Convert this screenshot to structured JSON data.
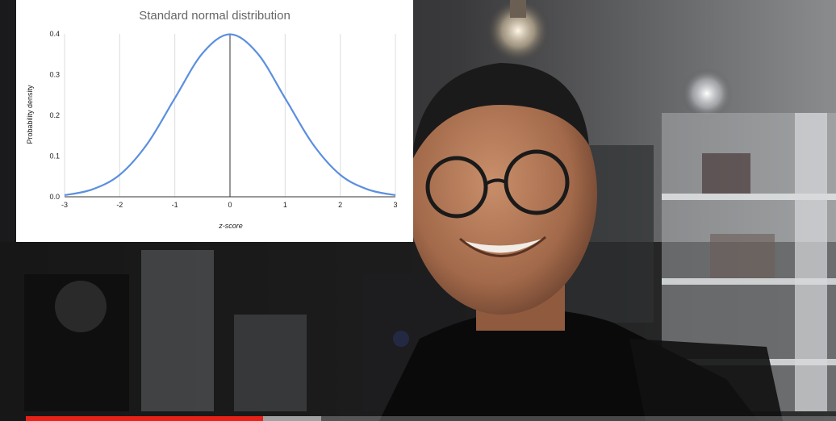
{
  "player": {
    "progress": {
      "played_fraction": 0.293,
      "buffered_fraction": 0.365,
      "played_color": "#e62117"
    }
  },
  "chart_data": {
    "type": "line",
    "title": "Standard normal distribution",
    "xlabel": "z-score",
    "ylabel": "Probability density",
    "xlim": [
      -3,
      3
    ],
    "ylim": [
      0,
      0.4
    ],
    "x_ticks": [
      "-3",
      "-2",
      "-1",
      "0",
      "1",
      "2",
      "3"
    ],
    "y_ticks": [
      "0.0",
      "0.1",
      "0.2",
      "0.3",
      "0.4"
    ],
    "grid": "vertical",
    "line_color": "#5b8fe0",
    "series": [
      {
        "x": [
          -3,
          -2.5,
          -2,
          -1.5,
          -1,
          -0.5,
          0,
          0.5,
          1,
          1.5,
          2,
          2.5,
          3
        ],
        "values": [
          0.004,
          0.018,
          0.054,
          0.13,
          0.242,
          0.352,
          0.399,
          0.352,
          0.242,
          0.13,
          0.054,
          0.018,
          0.004
        ]
      }
    ]
  }
}
